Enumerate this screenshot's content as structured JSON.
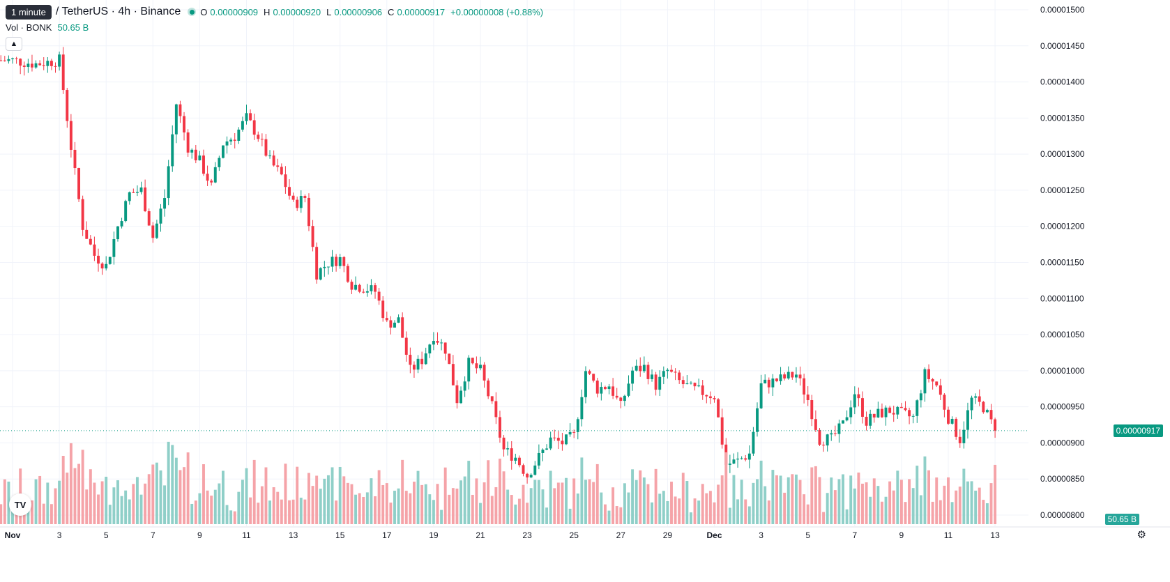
{
  "tooltip": "1 minute",
  "symbol_title": "/ TetherUS · 4h · Binance",
  "ohlc": {
    "o_label": "O",
    "o_value": "0.00000909",
    "h_label": "H",
    "h_value": "0.00000920",
    "l_label": "L",
    "l_value": "0.00000906",
    "c_label": "C",
    "c_value": "0.00000917",
    "change": "+0.00000008 (+0.88%)"
  },
  "volume": {
    "label": "Vol · BONK",
    "value": "50.65 B"
  },
  "current_price_label": "0.00000917",
  "volume_tag_label": "50.65 B",
  "collapse_icon": "chevron-up-icon",
  "logo_text": "TV",
  "settings_icon": "gear-icon",
  "colors": {
    "up": "#089981",
    "down": "#f23645",
    "up_vol": "#8fcfc8",
    "down_vol": "#f5a3a8",
    "grid": "#f0f3fa",
    "text": "#131722"
  },
  "chart_data": {
    "type": "candlestick",
    "y_ticks": [
      "0.00001500",
      "0.00001450",
      "0.00001400",
      "0.00001350",
      "0.00001300",
      "0.00001250",
      "0.00001200",
      "0.00001150",
      "0.00001100",
      "0.00001050",
      "0.00001000",
      "0.00000950",
      "0.00000900",
      "0.00000850",
      "0.00000800"
    ],
    "ylim": [
      8e-06,
      1.5e-05
    ],
    "x_ticks": [
      "Nov",
      "3",
      "5",
      "7",
      "9",
      "11",
      "13",
      "15",
      "17",
      "19",
      "21",
      "23",
      "25",
      "27",
      "29",
      "Dec",
      "3",
      "5",
      "7",
      "9",
      "11",
      "13"
    ],
    "xlim": [
      "Nov 1",
      "Dec 13"
    ],
    "grid": true,
    "price_points": [
      [
        "Nov 1",
        1.43e-05
      ],
      [
        "Nov 2",
        1.425e-05
      ],
      [
        "Nov 3",
        1.43e-05
      ],
      [
        "Nov 3.5",
        1.31e-05
      ],
      [
        "Nov 4",
        1.2e-05
      ],
      [
        "Nov 4.5",
        1.16e-05
      ],
      [
        "Nov 5",
        1.145e-05
      ],
      [
        "Nov 5.5",
        1.2e-05
      ],
      [
        "Nov 6",
        1.245e-05
      ],
      [
        "Nov 6.5",
        1.25e-05
      ],
      [
        "Nov 7",
        1.185e-05
      ],
      [
        "Nov 7.5",
        1.24e-05
      ],
      [
        "Nov 8",
        1.37e-05
      ],
      [
        "Nov 8.5",
        1.31e-05
      ],
      [
        "Nov 9",
        1.29e-05
      ],
      [
        "Nov 9.5",
        1.255e-05
      ],
      [
        "Nov 10",
        1.315e-05
      ],
      [
        "Nov 10.5",
        1.325e-05
      ],
      [
        "Nov 11",
        1.35e-05
      ],
      [
        "Nov 11.5",
        1.325e-05
      ],
      [
        "Nov 12",
        1.29e-05
      ],
      [
        "Nov 12.5",
        1.27e-05
      ],
      [
        "Nov 13",
        1.23e-05
      ],
      [
        "Nov 13.5",
        1.24e-05
      ],
      [
        "Nov 14",
        1.135e-05
      ],
      [
        "Nov 14.5",
        1.15e-05
      ],
      [
        "Nov 15",
        1.155e-05
      ],
      [
        "Nov 15.5",
        1.12e-05
      ],
      [
        "Nov 16",
        1.115e-05
      ],
      [
        "Nov 16.5",
        1.11e-05
      ],
      [
        "Nov 17",
        1.065e-05
      ],
      [
        "Nov 17.5",
        1.07e-05
      ],
      [
        "Nov 18",
        1e-05
      ],
      [
        "Nov 18.5",
        1.015e-05
      ],
      [
        "Nov 19",
        1.05e-05
      ],
      [
        "Nov 19.5",
        1.03e-05
      ],
      [
        "Nov 20",
        9.6e-06
      ],
      [
        "Nov 20.5",
        1.01e-05
      ],
      [
        "Nov 21",
        1e-05
      ],
      [
        "Nov 21.5",
        9.5e-06
      ],
      [
        "Nov 22",
        8.9e-06
      ],
      [
        "Nov 22.5",
        8.8e-06
      ],
      [
        "Nov 23",
        8.55e-06
      ],
      [
        "Nov 23.5",
        8.8e-06
      ],
      [
        "Nov 24",
        9.05e-06
      ],
      [
        "Nov 24.5",
        9e-06
      ],
      [
        "Nov 25",
        9.1e-06
      ],
      [
        "Nov 25.5",
        1e-05
      ],
      [
        "Nov 26",
        9.75e-06
      ],
      [
        "Nov 26.5",
        9.8e-06
      ],
      [
        "Nov 27",
        9.5e-06
      ],
      [
        "Nov 27.5",
        1e-05
      ],
      [
        "Nov 28",
        1.005e-05
      ],
      [
        "Nov 28.5",
        9.8e-06
      ],
      [
        "Nov 29",
        1e-05
      ],
      [
        "Nov 29.5",
        9.85e-06
      ],
      [
        "Nov 30",
        9.75e-06
      ],
      [
        "Nov 30.5",
        9.7e-06
      ],
      [
        "Dec 1",
        9.65e-06
      ],
      [
        "Dec 1.5",
        8.7e-06
      ],
      [
        "Dec 2",
        8.75e-06
      ],
      [
        "Dec 2.5",
        8.85e-06
      ],
      [
        "Dec 3",
        9.8e-06
      ],
      [
        "Dec 3.5",
        9.85e-06
      ],
      [
        "Dec 4",
        9.9e-06
      ],
      [
        "Dec 4.5",
        9.95e-06
      ],
      [
        "Dec 5",
        9.6e-06
      ],
      [
        "Dec 5.5",
        9.05e-06
      ],
      [
        "Dec 6",
        9.05e-06
      ],
      [
        "Dec 6.5",
        9.25e-06
      ],
      [
        "Dec 7",
        9.7e-06
      ],
      [
        "Dec 7.5",
        9.3e-06
      ],
      [
        "Dec 8",
        9.4e-06
      ],
      [
        "Dec 8.5",
        9.45e-06
      ],
      [
        "Dec 9",
        9.4e-06
      ],
      [
        "Dec 9.5",
        9.35e-06
      ],
      [
        "Dec 10",
        9.95e-06
      ],
      [
        "Dec 10.5",
        9.8e-06
      ],
      [
        "Dec 11",
        9.35e-06
      ],
      [
        "Dec 11.5",
        9.05e-06
      ],
      [
        "Dec 12",
        9.6e-06
      ],
      [
        "Dec 12.5",
        9.5e-06
      ],
      [
        "Dec 13",
        9.17e-06
      ]
    ],
    "current_price": 9.17e-06
  }
}
